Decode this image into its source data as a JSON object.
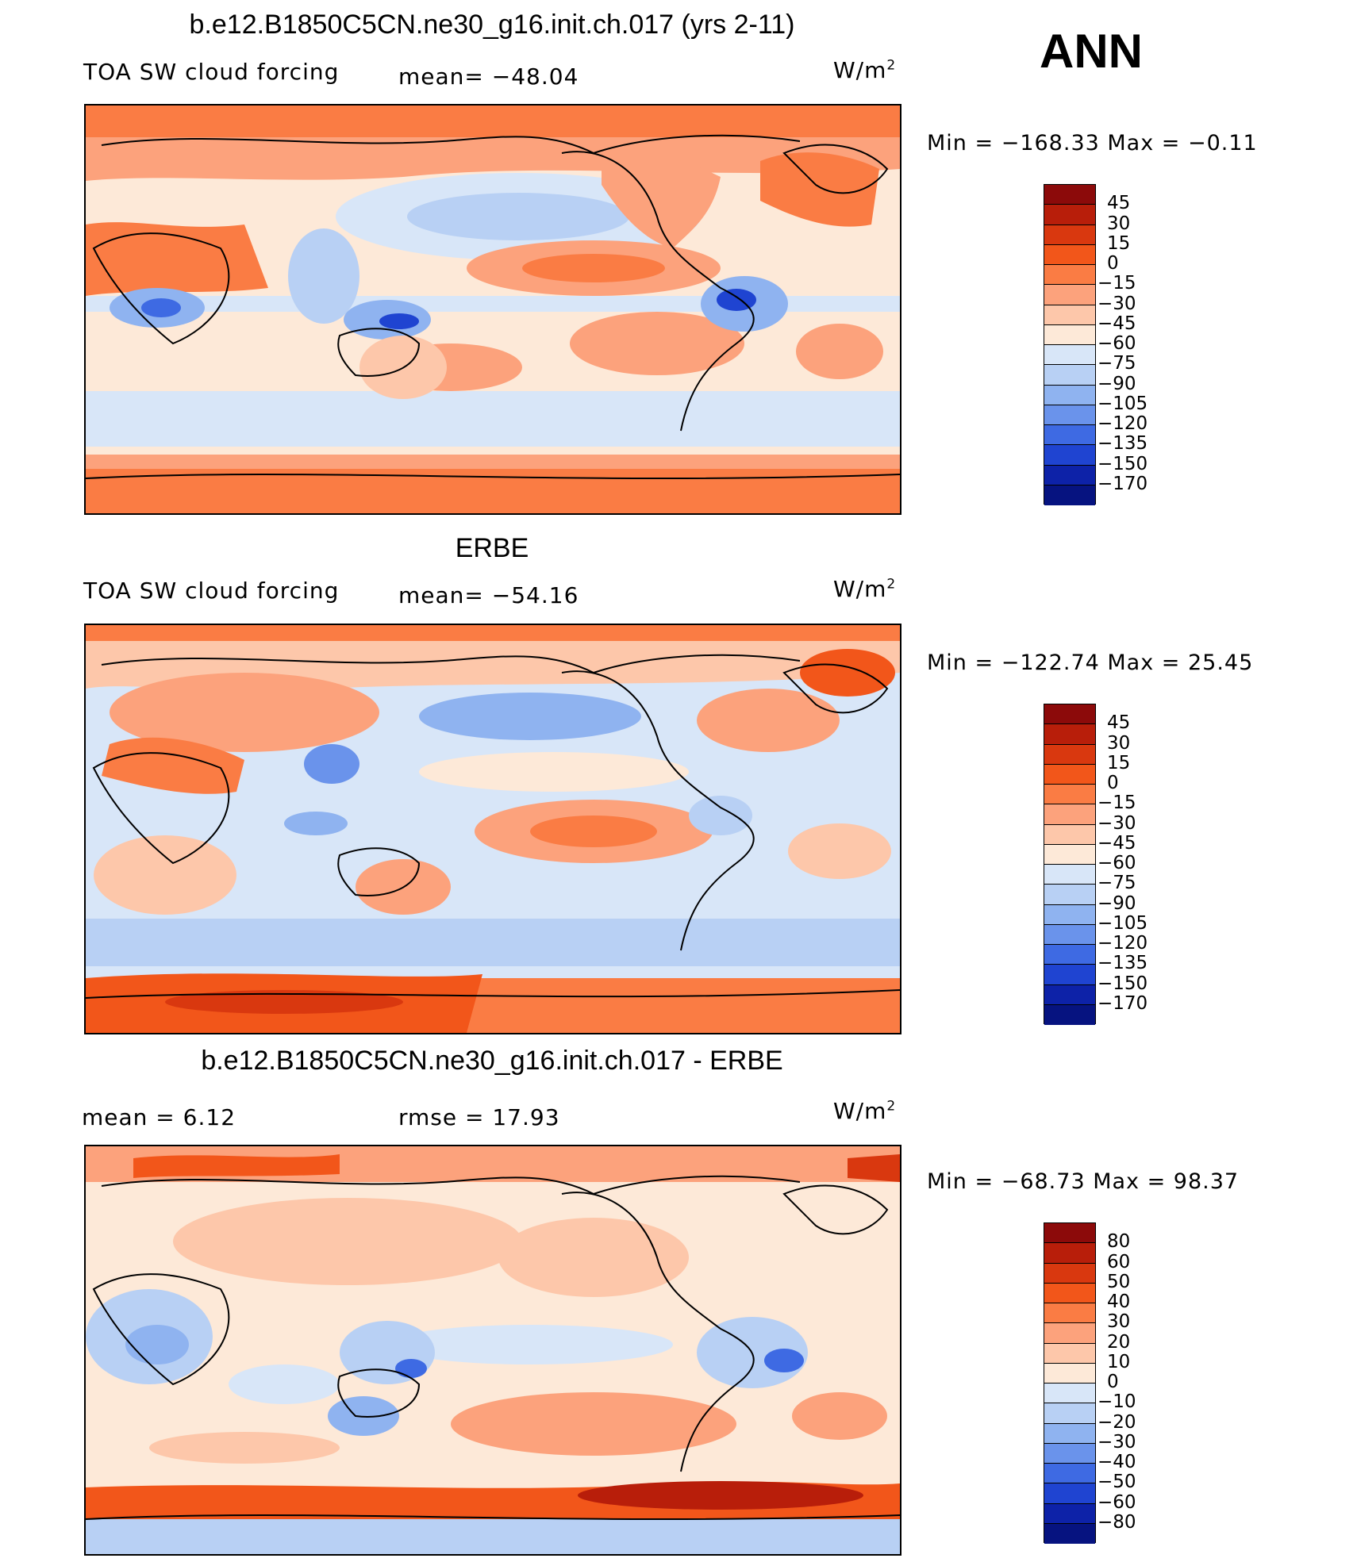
{
  "season_label": "ANN",
  "units": "W/m",
  "units_exp": "2",
  "panels": [
    {
      "title": "b.e12.B1850C5CN.ne30_g16.init.ch.017 (yrs 2-11)",
      "left_label": "TOA SW cloud forcing",
      "mid_label": "mean=  −48.04",
      "minmax": "Min  =  −168.33  Max  =    −0.11",
      "colorbar_labels": [
        "45",
        "30",
        "15",
        "0",
        "−15",
        "−30",
        "−45",
        "−60",
        "−75",
        "−90",
        "−105",
        "−120",
        "−135",
        "−150",
        "−170"
      ]
    },
    {
      "title": "ERBE",
      "left_label": "TOA SW cloud forcing",
      "mid_label": "mean=  −54.16",
      "minmax": "Min  =  −122.74  Max  =    25.45",
      "colorbar_labels": [
        "45",
        "30",
        "15",
        "0",
        "−15",
        "−30",
        "−45",
        "−60",
        "−75",
        "−90",
        "−105",
        "−120",
        "−135",
        "−150",
        "−170"
      ]
    },
    {
      "title": "b.e12.B1850C5CN.ne30_g16.init.ch.017 - ERBE",
      "left_label": "mean  =     6.12",
      "mid_label": "rmse  =    17.93",
      "minmax": "Min  =  −68.73  Max  =    98.37",
      "colorbar_labels": [
        "80",
        "60",
        "50",
        "40",
        "30",
        "20",
        "10",
        "0",
        "−10",
        "−20",
        "−30",
        "−40",
        "−50",
        "−60",
        "−80"
      ]
    }
  ],
  "colorbar_colors": [
    "#8c0a0a",
    "#b81e0a",
    "#d9380f",
    "#f2561a",
    "#fa7c44",
    "#fca27c",
    "#fdc7aa",
    "#fde9d8",
    "#d8e6f8",
    "#b8d0f4",
    "#8fb3f0",
    "#6a93eb",
    "#3e6ae3",
    "#1f44d1",
    "#0d22a8",
    "#061380"
  ],
  "chart_data": [
    {
      "type": "heatmap",
      "title": "b.e12.B1850C5CN.ne30_g16.init.ch.017 (yrs 2-11)",
      "variable": "TOA SW cloud forcing",
      "units": "W/m2",
      "mean": -48.04,
      "min": -168.33,
      "max": -0.11,
      "levels": [
        -170,
        -150,
        -135,
        -120,
        -105,
        -90,
        -75,
        -60,
        -45,
        -30,
        -15,
        0,
        15,
        30,
        45
      ]
    },
    {
      "type": "heatmap",
      "title": "ERBE",
      "variable": "TOA SW cloud forcing",
      "units": "W/m2",
      "mean": -54.16,
      "min": -122.74,
      "max": 25.45,
      "levels": [
        -170,
        -150,
        -135,
        -120,
        -105,
        -90,
        -75,
        -60,
        -45,
        -30,
        -15,
        0,
        15,
        30,
        45
      ]
    },
    {
      "type": "heatmap",
      "title": "b.e12.B1850C5CN.ne30_g16.init.ch.017 - ERBE",
      "units": "W/m2",
      "mean": 6.12,
      "rmse": 17.93,
      "min": -68.73,
      "max": 98.37,
      "levels": [
        -80,
        -60,
        -50,
        -40,
        -30,
        -20,
        -10,
        0,
        10,
        20,
        30,
        40,
        50,
        60,
        80
      ]
    }
  ]
}
